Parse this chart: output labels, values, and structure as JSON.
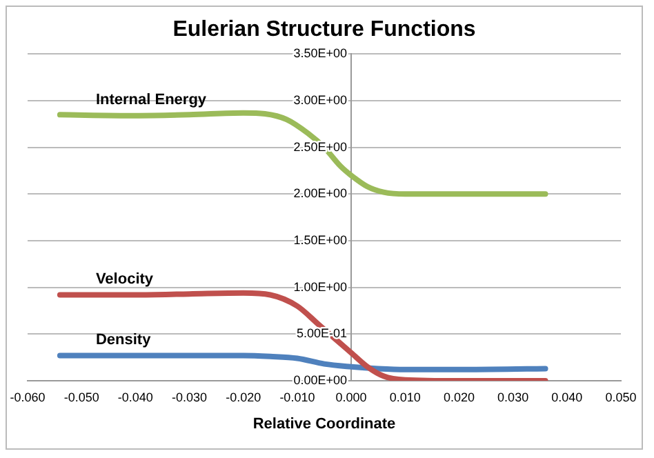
{
  "chart_data": {
    "type": "line",
    "title": "Eulerian Structure Functions",
    "xlabel": "Relative Coordinate",
    "xlim": [
      -0.06,
      0.05
    ],
    "xticks": [
      {
        "value": -0.06,
        "label": "-0.060"
      },
      {
        "value": -0.05,
        "label": "-0.050"
      },
      {
        "value": -0.04,
        "label": "-0.040"
      },
      {
        "value": -0.03,
        "label": "-0.030"
      },
      {
        "value": -0.02,
        "label": "-0.020"
      },
      {
        "value": -0.01,
        "label": "-0.010"
      },
      {
        "value": 0,
        "label": "0.000"
      },
      {
        "value": 0.01,
        "label": "0.010"
      },
      {
        "value": 0.02,
        "label": "0.020"
      },
      {
        "value": 0.03,
        "label": "0.030"
      },
      {
        "value": 0.04,
        "label": "0.040"
      },
      {
        "value": 0.05,
        "label": "0.050"
      }
    ],
    "ylim": [
      0,
      3.5
    ],
    "yticks": [
      {
        "value": 0,
        "label": "0.00E+00"
      },
      {
        "value": 0.5,
        "label": "5.00E-01"
      },
      {
        "value": 1,
        "label": "1.00E+00"
      },
      {
        "value": 1.5,
        "label": "1.50E+00"
      },
      {
        "value": 2,
        "label": "2.00E+00"
      },
      {
        "value": 2.5,
        "label": "2.50E+00"
      },
      {
        "value": 3,
        "label": "3.00E+00"
      },
      {
        "value": 3.5,
        "label": "3.50E+00"
      }
    ],
    "grid": "y",
    "legend": false,
    "marker": "none",
    "line_style": "solid",
    "series": [
      {
        "name": "Internal Energy",
        "color": "#9bbb59",
        "x": [
          -0.054,
          -0.04,
          -0.03,
          -0.02,
          -0.016,
          -0.012,
          -0.008,
          -0.005,
          -0.002,
          0,
          0.003,
          0.006,
          0.01,
          0.02,
          0.036
        ],
        "values": [
          2.85,
          2.84,
          2.85,
          2.87,
          2.86,
          2.8,
          2.65,
          2.5,
          2.3,
          2.2,
          2.08,
          2.02,
          2.0,
          2.0,
          2.0
        ]
      },
      {
        "name": "Velocity",
        "color": "#c0504d",
        "x": [
          -0.054,
          -0.04,
          -0.03,
          -0.02,
          -0.015,
          -0.01,
          -0.006,
          -0.003,
          0,
          0.003,
          0.006,
          0.01,
          0.02,
          0.036
        ],
        "values": [
          0.92,
          0.92,
          0.93,
          0.94,
          0.92,
          0.8,
          0.6,
          0.45,
          0.3,
          0.15,
          0.05,
          0.01,
          0.0,
          0.0
        ]
      },
      {
        "name": "Density",
        "color": "#4f81bd",
        "x": [
          -0.054,
          -0.04,
          -0.03,
          -0.02,
          -0.015,
          -0.01,
          -0.005,
          0,
          0.005,
          0.01,
          0.02,
          0.036
        ],
        "values": [
          0.27,
          0.27,
          0.27,
          0.27,
          0.26,
          0.24,
          0.18,
          0.15,
          0.13,
          0.12,
          0.12,
          0.13
        ]
      }
    ]
  }
}
